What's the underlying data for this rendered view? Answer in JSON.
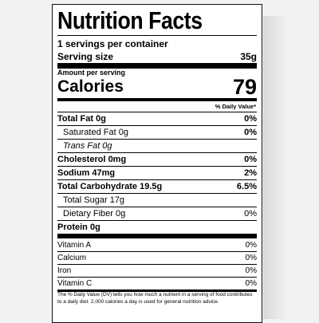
{
  "title": "Nutrition Facts",
  "servings": "1 servings per container",
  "serving_size": {
    "label": "Serving size",
    "value": "35g"
  },
  "amount_per_serving": "Amount per serving",
  "calories": {
    "label": "Calories",
    "value": "79"
  },
  "daily_value_header": "% Daily Value*",
  "nutrients": [
    {
      "name": "Total Fat 0g",
      "dv": "0%"
    },
    {
      "name": "Saturated Fat 0g",
      "dv": "0%"
    },
    {
      "name": "Trans Fat 0g"
    },
    {
      "name": "Cholesterol 0mg",
      "dv": "0%"
    },
    {
      "name": "Sodium 47mg",
      "dv": "2%"
    },
    {
      "name": "Total Carbohydrate 19.5g",
      "dv": "6.5%"
    },
    {
      "name": "Total Sugar 17g"
    },
    {
      "name": "Dietary Fiber 0g",
      "dv": "0%"
    },
    {
      "name": "Protein 0g"
    }
  ],
  "vitamins": [
    {
      "name": "Vitamin A",
      "dv": "0%"
    },
    {
      "name": "Calcium",
      "dv": "0%"
    },
    {
      "name": "Iron",
      "dv": "0%"
    },
    {
      "name": "Vitamin C",
      "dv": "0%"
    }
  ],
  "footnote": "The % Daily Value (DV) tells you how much a nutrient in a serving of food contributes to a daily diet. 2,000 calories a day is used for general nutrition advice."
}
